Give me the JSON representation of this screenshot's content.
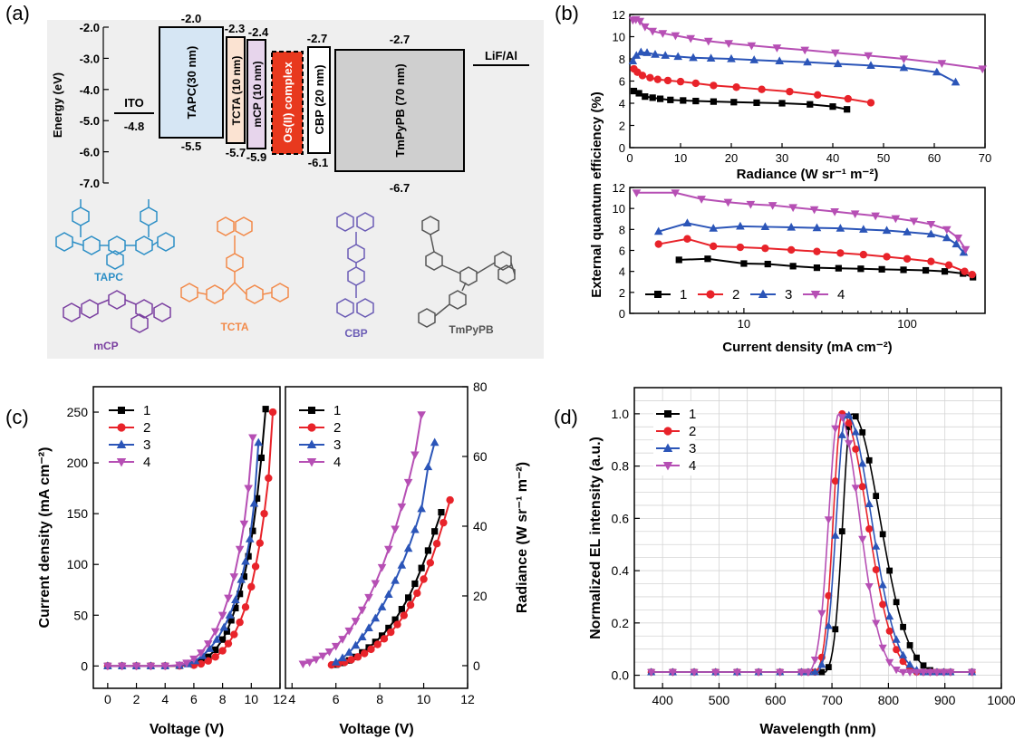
{
  "panel_labels": {
    "a": "(a)",
    "b": "(b)",
    "c": "(c)",
    "d": "(d)"
  },
  "colors": {
    "s1": "#000000",
    "s2": "#e8232a",
    "s3": "#2b55b8",
    "s4": "#b64fb4",
    "tapc": "#2d8fc6",
    "tcta": "#f28a4a",
    "mcp": "#7a3fa0",
    "cbp": "#6b5cb5",
    "tmpypb": "#555555",
    "os": "#e8391e"
  },
  "panel_a": {
    "ylabel": "Energy (eV)",
    "yticks": [
      "-2.0",
      "-3.0",
      "-4.0",
      "-5.0",
      "-6.0",
      "-7.0"
    ],
    "layers": [
      {
        "name": "ITO",
        "lower": "-4.8"
      },
      {
        "name": "TAPC(30 nm)",
        "upper": "-2.0",
        "lower": "-5.5"
      },
      {
        "name": "TCTA (10 nm)",
        "upper": "-2.3",
        "lower": "-5.7"
      },
      {
        "name": "mCP (10 nm)",
        "upper": "-2.4",
        "lower": "-5.9"
      },
      {
        "name": "Os(II) complex"
      },
      {
        "name": "CBP (20 nm)",
        "upper": "-2.7",
        "lower": "-6.1"
      },
      {
        "name": "TmPyPB (70 nm)",
        "upper": "-2.7",
        "lower": "-6.7"
      },
      {
        "name": "LiF/Al"
      }
    ],
    "molecules": [
      "TAPC",
      "mCP",
      "TCTA",
      "CBP",
      "TmPyPB"
    ]
  },
  "chart_data": [
    {
      "id": "b-top",
      "type": "line",
      "title": "",
      "xlabel": "Radiance (W sr⁻¹ m⁻²)",
      "ylabel": "External quantum efficiency (%)",
      "xlim": [
        0,
        70
      ],
      "ylim": [
        0,
        12
      ],
      "xticks": [
        "0",
        "10",
        "20",
        "30",
        "40",
        "50",
        "60",
        "70"
      ],
      "yticks": [
        "0",
        "2",
        "4",
        "6",
        "8",
        "10",
        "12"
      ],
      "series": [
        {
          "name": "1",
          "x": [
            0.8,
            1.8,
            3,
            4.5,
            6,
            8,
            10.5,
            13,
            16.5,
            20.5,
            25,
            30,
            35.5,
            40,
            42.8
          ],
          "y": [
            5.1,
            4.9,
            4.6,
            4.5,
            4.4,
            4.3,
            4.25,
            4.2,
            4.15,
            4.1,
            4.05,
            4.0,
            3.9,
            3.7,
            3.45
          ]
        },
        {
          "name": "2",
          "x": [
            0.8,
            1.5,
            2.5,
            4,
            5.5,
            7.5,
            10,
            13,
            16.5,
            21,
            26,
            31.5,
            37,
            43,
            47.5
          ],
          "y": [
            7.1,
            6.8,
            6.5,
            6.3,
            6.15,
            6.05,
            5.95,
            5.8,
            5.6,
            5.45,
            5.25,
            5.05,
            4.75,
            4.4,
            4.05
          ]
        },
        {
          "name": "3",
          "x": [
            0.6,
            1.3,
            2.2,
            3.4,
            5,
            7,
            9.5,
            12.5,
            16,
            20,
            24.5,
            29.5,
            35,
            41,
            47.5,
            54,
            60.5,
            64.2
          ],
          "y": [
            7.8,
            8.3,
            8.6,
            8.55,
            8.4,
            8.3,
            8.2,
            8.1,
            8.05,
            8.0,
            7.9,
            7.8,
            7.7,
            7.55,
            7.4,
            7.2,
            6.8,
            5.9
          ]
        },
        {
          "name": "4",
          "x": [
            0.6,
            1.2,
            2,
            3,
            4.5,
            6.5,
            9,
            12,
            15.5,
            19.5,
            24,
            29,
            34.5,
            40.5,
            47,
            54,
            61.5,
            69.5
          ],
          "y": [
            11.5,
            11.55,
            11.4,
            10.9,
            10.5,
            10.3,
            10.1,
            9.85,
            9.6,
            9.4,
            9.2,
            9.0,
            8.8,
            8.55,
            8.3,
            8.0,
            7.6,
            7.1
          ]
        }
      ]
    },
    {
      "id": "b-bottom",
      "type": "line",
      "title": "",
      "xlabel": "Current density (mA cm⁻²)",
      "ylabel": "External quantum efficiency (%)",
      "xscale": "log",
      "xlim": [
        2,
        300
      ],
      "ylim": [
        0,
        12
      ],
      "xticks": [
        "10",
        "100"
      ],
      "yticks": [
        "0",
        "2",
        "4",
        "6",
        "8",
        "10",
        "12"
      ],
      "legend": [
        "1",
        "2",
        "3",
        "4"
      ],
      "series": [
        {
          "name": "1",
          "x": [
            4,
            6,
            10,
            14,
            20,
            28,
            38,
            52,
            70,
            95,
            130,
            170,
            220,
            253
          ],
          "y": [
            5.1,
            5.2,
            4.75,
            4.7,
            4.5,
            4.35,
            4.3,
            4.25,
            4.2,
            4.15,
            4.1,
            4.0,
            3.8,
            3.45
          ]
        },
        {
          "name": "2",
          "x": [
            3,
            4.5,
            6.5,
            9.5,
            13.5,
            19.5,
            28,
            39,
            54,
            75,
            100,
            140,
            180,
            225,
            250
          ],
          "y": [
            6.6,
            7.1,
            6.4,
            6.3,
            6.2,
            6.05,
            5.9,
            5.75,
            5.6,
            5.4,
            5.2,
            4.95,
            4.6,
            4.0,
            3.7
          ]
        },
        {
          "name": "3",
          "x": [
            3,
            4.5,
            6.5,
            9.5,
            13.5,
            19.5,
            28,
            39,
            54,
            75,
            100,
            140,
            175,
            200,
            222
          ],
          "y": [
            7.8,
            8.6,
            8.1,
            8.3,
            8.25,
            8.2,
            8.15,
            8.1,
            8.0,
            7.9,
            7.75,
            7.55,
            7.2,
            6.6,
            5.8
          ]
        },
        {
          "name": "4",
          "x": [
            2.2,
            3.8,
            5.5,
            8,
            11,
            15,
            20,
            27,
            36,
            48,
            64,
            85,
            110,
            140,
            175,
            205,
            228
          ],
          "y": [
            11.5,
            11.5,
            10.9,
            10.6,
            10.4,
            10.3,
            10.1,
            9.9,
            9.7,
            9.5,
            9.3,
            9.05,
            8.8,
            8.5,
            8.0,
            7.2,
            6.1
          ]
        }
      ]
    },
    {
      "id": "c-left",
      "type": "line",
      "title": "",
      "xlabel": "Voltage (V)",
      "ylabel": "Current density (mA cm⁻²)",
      "xlim": [
        -1,
        12
      ],
      "ylim": [
        -22,
        275
      ],
      "xticks": [
        "0",
        "2",
        "4",
        "6",
        "8",
        "10",
        "12"
      ],
      "yticks": [
        "0",
        "50",
        "100",
        "150",
        "200",
        "250"
      ],
      "legend": [
        "1",
        "2",
        "3",
        "4"
      ],
      "series": [
        {
          "name": "1",
          "x": [
            0,
            1,
            2,
            3,
            4,
            5,
            6,
            6.5,
            7,
            7.5,
            8,
            8.3,
            8.6,
            8.9,
            9.2,
            9.5,
            9.8,
            10.1,
            10.4,
            10.7,
            11
          ],
          "y": [
            0,
            0,
            0,
            0,
            0,
            0.2,
            1.5,
            4,
            9,
            16,
            26,
            34,
            45,
            57,
            71,
            88,
            108,
            133,
            165,
            205,
            253
          ]
        },
        {
          "name": "2",
          "x": [
            0,
            1,
            2,
            3,
            4,
            5,
            6,
            6.5,
            7,
            7.5,
            8,
            8.4,
            8.8,
            9.2,
            9.6,
            10,
            10.3,
            10.6,
            10.9,
            11.2,
            11.5
          ],
          "y": [
            0,
            0,
            0,
            0,
            0,
            0.1,
            0.8,
            2,
            5,
            9,
            15,
            22,
            31,
            43,
            58,
            78,
            98,
            121,
            150,
            185,
            250
          ]
        },
        {
          "name": "3",
          "x": [
            0,
            1,
            2,
            3,
            4,
            5,
            5.6,
            6.1,
            6.6,
            7.1,
            7.6,
            8.1,
            8.5,
            8.9,
            9.3,
            9.6,
            9.9,
            10.2,
            10.5
          ],
          "y": [
            0,
            0,
            0,
            0,
            0,
            0.5,
            2,
            5,
            10,
            17,
            26,
            38,
            50,
            65,
            85,
            103,
            125,
            160,
            220
          ]
        },
        {
          "name": "4",
          "x": [
            0,
            1,
            2,
            3,
            4,
            5,
            5.5,
            6,
            6.5,
            7,
            7.5,
            8,
            8.4,
            8.8,
            9.2,
            9.5,
            9.8,
            10.1
          ],
          "y": [
            0,
            0,
            0,
            0,
            0,
            1,
            3,
            7,
            13,
            22,
            34,
            50,
            67,
            88,
            115,
            140,
            175,
            225
          ]
        }
      ]
    },
    {
      "id": "c-right",
      "type": "line",
      "title": "",
      "xlabel": "Voltage (V)",
      "ylabel": "Radiance (W sr⁻¹ m⁻²)",
      "xlim": [
        3.7,
        12
      ],
      "ylim": [
        -6.5,
        80
      ],
      "xticks": [
        "4",
        "6",
        "8",
        "10",
        "12"
      ],
      "yticks": [
        "0",
        "20",
        "40",
        "60",
        "80"
      ],
      "legend": [
        "1",
        "2",
        "3",
        "4"
      ],
      "series": [
        {
          "name": "1",
          "x": [
            6,
            6.3,
            6.6,
            6.9,
            7.2,
            7.5,
            7.8,
            8.1,
            8.4,
            8.7,
            9,
            9.3,
            9.6,
            9.9,
            10.2,
            10.5,
            10.8
          ],
          "y": [
            0.3,
            0.8,
            1.5,
            2.5,
            3.8,
            5.2,
            6.8,
            8.6,
            10.8,
            13.2,
            16.2,
            19.5,
            23.5,
            28,
            33,
            38.5,
            44
          ]
        },
        {
          "name": "2",
          "x": [
            5.8,
            6.1,
            6.4,
            6.7,
            7,
            7.3,
            7.6,
            7.9,
            8.2,
            8.5,
            8.8,
            9.1,
            9.4,
            9.7,
            10,
            10.3,
            10.6,
            10.9,
            11.2
          ],
          "y": [
            0.2,
            0.5,
            1,
            1.7,
            2.5,
            3.5,
            4.7,
            6.1,
            7.7,
            9.6,
            11.8,
            14.4,
            17.4,
            20.8,
            24.8,
            29.5,
            35,
            41,
            47.5
          ]
        },
        {
          "name": "3",
          "x": [
            6,
            6.3,
            6.6,
            6.9,
            7.2,
            7.5,
            7.8,
            8.1,
            8.4,
            8.7,
            9,
            9.3,
            9.6,
            9.9,
            10.2,
            10.5
          ],
          "y": [
            1,
            2.2,
            3.8,
            5.8,
            8.2,
            10.8,
            13.6,
            16.8,
            20.4,
            24.4,
            28.8,
            33.6,
            39,
            45,
            57,
            64
          ]
        },
        {
          "name": "4",
          "x": [
            4.5,
            4.8,
            5.1,
            5.4,
            5.7,
            6,
            6.3,
            6.6,
            6.9,
            7.2,
            7.5,
            7.8,
            8.1,
            8.4,
            8.7,
            9,
            9.3,
            9.6,
            9.9
          ],
          "y": [
            0.5,
            1,
            1.8,
            2.8,
            4,
            5.6,
            7.6,
            10,
            12.8,
            16,
            19.6,
            23.6,
            28.2,
            33.4,
            39.2,
            45.6,
            52.6,
            60.5,
            72
          ]
        }
      ]
    },
    {
      "id": "d",
      "type": "line",
      "title": "",
      "xlabel": "Wavelength (nm)",
      "ylabel": "Normalized EL intensity (a.u.)",
      "xlim": [
        350,
        1000
      ],
      "ylim": [
        -0.05,
        1.1
      ],
      "xticks": [
        "400",
        "500",
        "600",
        "700",
        "800",
        "900",
        "1000"
      ],
      "yticks": [
        "0.0",
        "0.2",
        "0.4",
        "0.6",
        "0.8",
        "1.0"
      ],
      "legend": [
        "1",
        "2",
        "3",
        "4"
      ],
      "peaks": [
        {
          "name": "1",
          "center": 735,
          "width_left": 22,
          "width_right": 70,
          "onset": 660
        },
        {
          "name": "2",
          "center": 718,
          "width_left": 22,
          "width_right": 63,
          "onset": 650
        },
        {
          "name": "3",
          "center": 725,
          "width_left": 24,
          "width_right": 63,
          "onset": 650
        },
        {
          "name": "4",
          "center": 712,
          "width_left": 25,
          "width_right": 52,
          "onset": 640
        }
      ],
      "x_range": [
        380,
        950
      ]
    }
  ]
}
